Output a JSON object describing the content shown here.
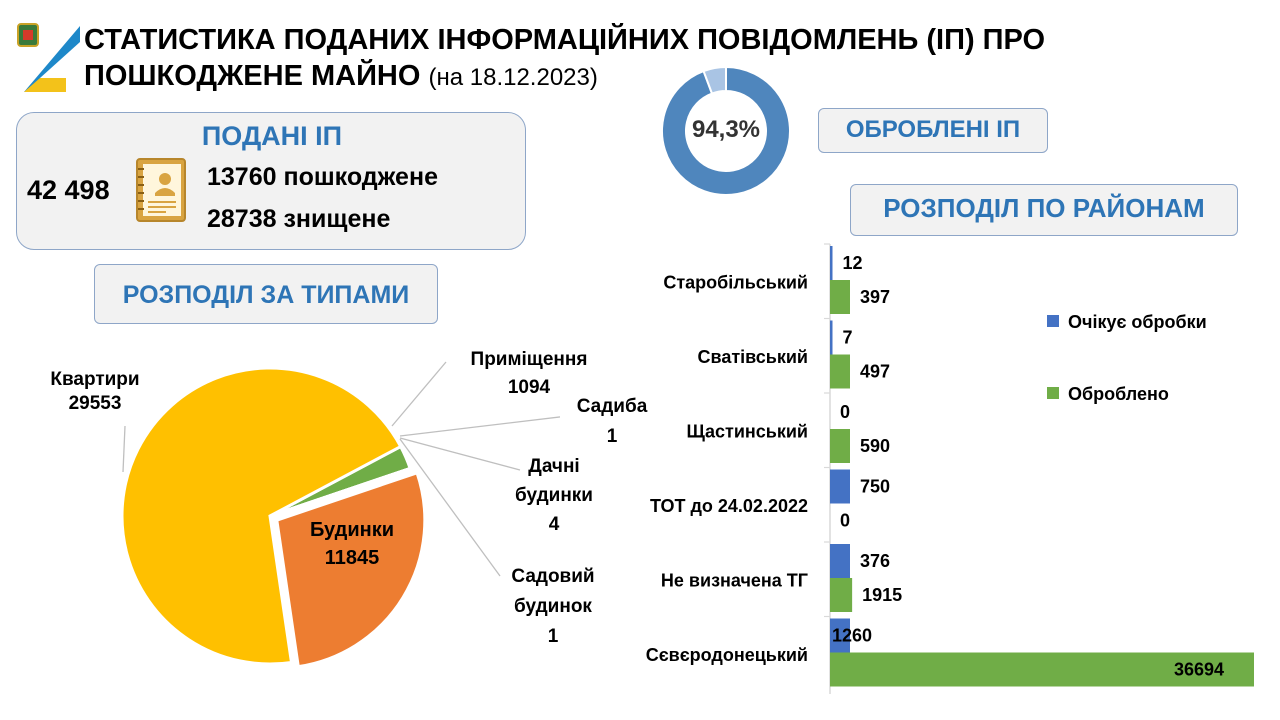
{
  "header": {
    "title_line1": "СТАТИСТИКА ПОДАНИХ ІНФОРМАЦІЙНИХ ПОВІДОМЛЕНЬ (ІП) ПРО",
    "title_line2": "ПОШКОДЖЕНЕ МАЙНО",
    "date": "(на 18.12.2023)"
  },
  "submitted": {
    "title": "ПОДАНІ ІП",
    "total": "42 498",
    "damaged": "13760 пошкоджене",
    "destroyed": "28738 знищене",
    "icon": "document-certificate-icon"
  },
  "processed": {
    "label": "ОБРОБЛЕНІ ІП",
    "percent_text": "94,3%",
    "percent_value": 94.3,
    "colors": {
      "main": "#4f86bd",
      "rest": "#a9c4e4"
    }
  },
  "types": {
    "label": "РОЗПОДІЛ ЗА ТИПАМИ",
    "chart_data": {
      "type": "pie",
      "slices": [
        {
          "name": "Квартири",
          "value": 29553,
          "color": "#ffc000"
        },
        {
          "name": "Приміщення",
          "value": 1094,
          "color": "#70ad47"
        },
        {
          "name": "Садиба",
          "value": 1,
          "color": "#4472c4"
        },
        {
          "name": "Дачні будинки",
          "value": 4,
          "color": "#a5a5a5"
        },
        {
          "name": "Будинки",
          "value": 11845,
          "color": "#ed7d31"
        },
        {
          "name": "Садовий будинок",
          "value": 1,
          "color": "#5b9bd5"
        }
      ],
      "labels": {
        "kvartyry_name": "Квартири",
        "kvartyry_value": "29553",
        "prymishchennia_name": "Приміщення",
        "prymishchennia_value": "1094",
        "sadyba_name": "Садиба",
        "sadyba_value": "1",
        "dachni_name1": "Дачні",
        "dachni_name2": "будинки",
        "dachni_value": "4",
        "budynky_name": "Будинки",
        "budynky_value": "11845",
        "sadovyi_name1": "Садовий",
        "sadovyi_name2": "будинок",
        "sadovyi_value": "1"
      }
    }
  },
  "districts": {
    "label": "РОЗПОДІЛ ПО РАЙОНАМ",
    "chart_data": {
      "type": "bar",
      "orientation": "horizontal",
      "categories": [
        "Старобільський",
        "Сватівський",
        "Щастинський",
        "ТОТ до 24.02.2022",
        "Не визначена ТГ",
        "Сєвєродонецький"
      ],
      "series": [
        {
          "name": "Очікує обробки",
          "color": "#4472c4",
          "values": [
            12,
            7,
            0,
            750,
            376,
            1260
          ]
        },
        {
          "name": "Оброблено",
          "color": "#70ad47",
          "values": [
            397,
            497,
            590,
            0,
            1915,
            36694
          ]
        }
      ],
      "legend_position": "right"
    }
  }
}
